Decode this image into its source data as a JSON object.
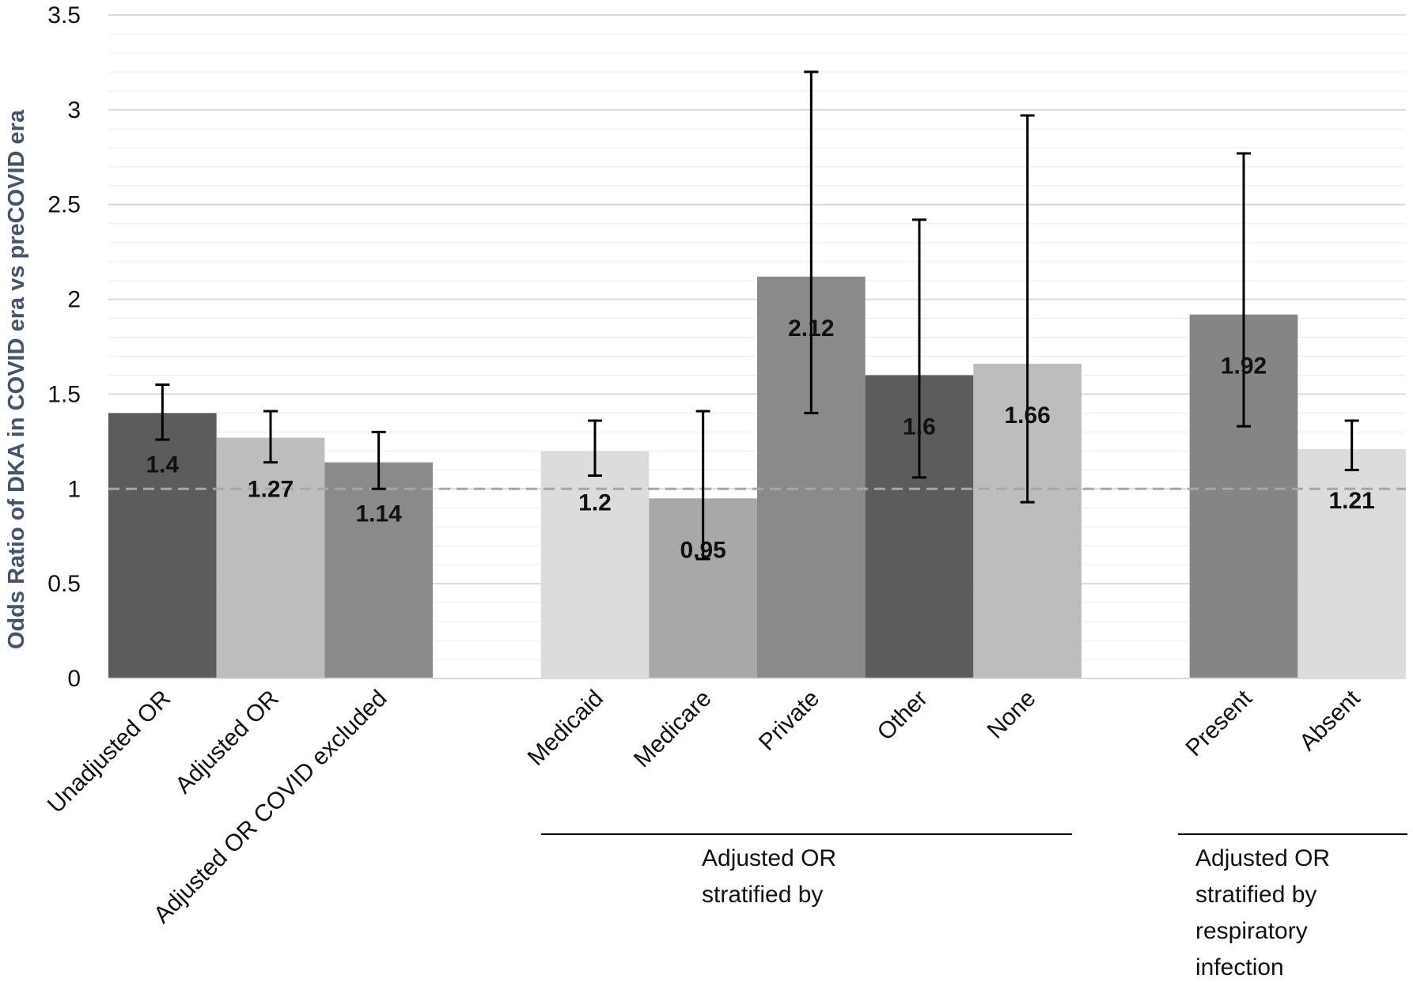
{
  "chart_data": {
    "type": "bar",
    "y_label": "Odds Ratio of DKA in COVID era vs preCOVID era",
    "categories": [
      "Unadjusted OR",
      "Adjusted OR",
      "Adjusted OR COVID excluded",
      null,
      "Medicaid",
      "Medicare",
      "Private",
      "Other",
      "None",
      null,
      "Present",
      "Absent"
    ],
    "values": [
      1.4,
      1.27,
      1.14,
      null,
      1.2,
      0.95,
      2.12,
      1.6,
      1.66,
      null,
      1.92,
      1.21
    ],
    "ci_low": [
      1.26,
      1.14,
      1.0,
      null,
      1.07,
      0.63,
      1.4,
      1.06,
      0.93,
      null,
      1.33,
      1.1
    ],
    "ci_high": [
      1.55,
      1.41,
      1.3,
      null,
      1.36,
      1.41,
      3.2,
      2.42,
      2.97,
      null,
      2.77,
      1.36
    ],
    "colors": [
      "#5c5c5c",
      "#bdbdbd",
      "#8a8a8a",
      null,
      "#dcdcdc",
      "#a8a8a8",
      "#8a8a8a",
      "#5c5c5c",
      "#bdbdbd",
      null,
      "#858585",
      "#dcdcdc"
    ],
    "ylim": [
      0,
      3.5
    ],
    "yticks": [
      0,
      0.5,
      1,
      1.5,
      2,
      2.5,
      3,
      3.5
    ],
    "minor_grid_step": 0.1,
    "grid": true,
    "reference_line": 1,
    "group_labels": [
      "Adjusted OR stratified by",
      "Adjusted OR stratified by respiratory infection"
    ]
  }
}
